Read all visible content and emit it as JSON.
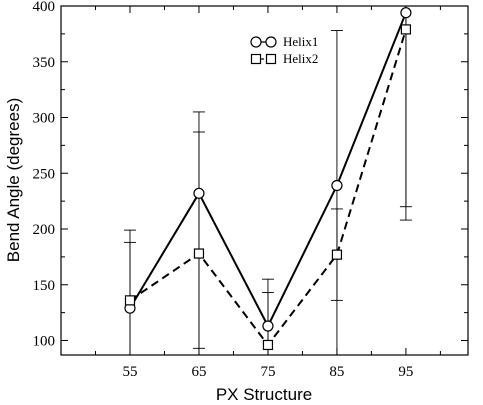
{
  "chart_data": {
    "type": "line",
    "xlabel": "PX Structure",
    "ylabel": "Bend Angle (degrees)",
    "categories": [
      "55",
      "65",
      "75",
      "85",
      "95"
    ],
    "x": [
      55,
      65,
      75,
      85,
      95
    ],
    "xlim": [
      45,
      104
    ],
    "ylim": [
      87,
      400
    ],
    "yticks": [
      100,
      150,
      200,
      250,
      300,
      350,
      400
    ],
    "grid": false,
    "legend_position": "top-center",
    "series": [
      {
        "name": "Helix1",
        "marker": "circle",
        "line_style": "solid",
        "values": [
          129,
          232,
          113,
          239,
          394
        ],
        "error_low": [
          40,
          87,
          82,
          87,
          208
        ],
        "error_high": [
          188,
          287,
          143,
          378,
          400
        ]
      },
      {
        "name": "Helix2",
        "marker": "square",
        "line_style": "dashed",
        "values": [
          136,
          178,
          96,
          177,
          379
        ],
        "error_low": [
          84,
          93,
          60,
          136,
          220
        ],
        "error_high": [
          199,
          305,
          155,
          218,
          400
        ]
      }
    ],
    "colors": {
      "line": "#000000",
      "marker_fill": "#ffffff",
      "background": "#ffffff"
    }
  }
}
